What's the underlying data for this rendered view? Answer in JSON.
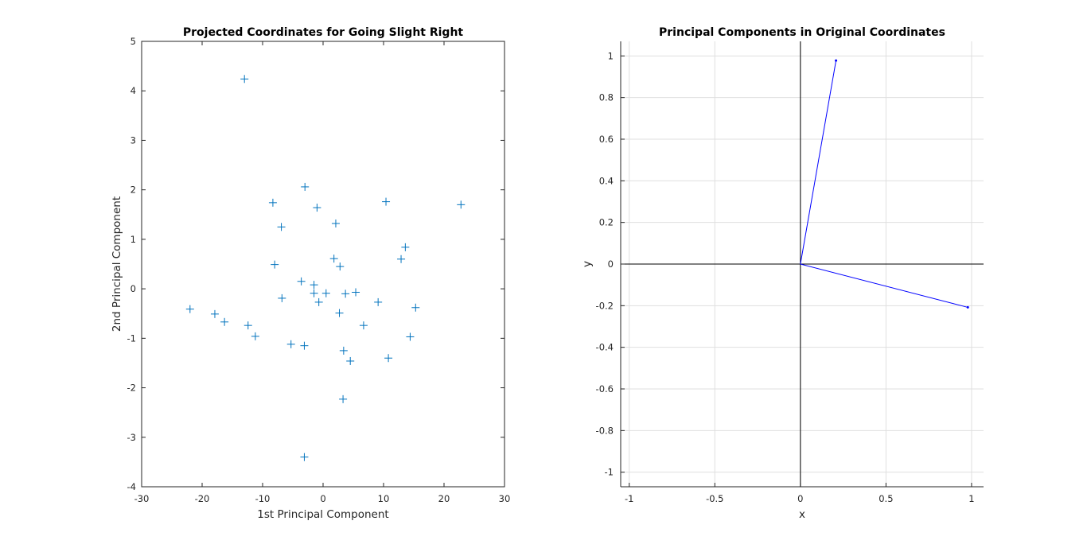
{
  "chart_data": [
    {
      "type": "scatter",
      "title": "Projected Coordinates for Going Slight Right",
      "xlabel": "1st Principal Component",
      "ylabel": "2nd Principal Component",
      "xlim": [
        -30,
        30
      ],
      "ylim": [
        -4,
        5
      ],
      "xticks": [
        -30,
        -20,
        -10,
        0,
        10,
        20,
        30
      ],
      "yticks": [
        -4,
        -3,
        -2,
        -1,
        0,
        1,
        2,
        3,
        4,
        5
      ],
      "grid": false,
      "marker": "+",
      "color": "#0072BD",
      "series": [
        {
          "x": [
            -13,
            -3,
            -8.3,
            -1,
            2.1,
            10.4,
            22.8,
            -6.9,
            13.6,
            1.8,
            12.9,
            -8,
            2.8,
            -3.6,
            -1.5,
            -1.5,
            0.5,
            3.7,
            5.4,
            -0.7,
            -6.8,
            9.1,
            15.3,
            -22,
            -17.9,
            -16.3,
            -12.4,
            2.7,
            -11.2,
            6.7,
            14.4,
            -5.3,
            -3.1,
            3.4,
            10.8,
            4.5,
            3.3,
            -3.1
          ],
          "y": [
            4.24,
            2.06,
            1.74,
            1.64,
            1.32,
            1.76,
            1.7,
            1.25,
            0.84,
            0.61,
            0.6,
            0.49,
            0.45,
            0.15,
            0.08,
            -0.09,
            -0.09,
            -0.1,
            -0.07,
            -0.27,
            -0.19,
            -0.27,
            -0.38,
            -0.41,
            -0.51,
            -0.67,
            -0.74,
            -0.49,
            -0.96,
            -0.74,
            -0.97,
            -1.12,
            -1.15,
            -1.25,
            -1.4,
            -1.46,
            -2.23,
            -3.4
          ]
        }
      ]
    },
    {
      "type": "line",
      "title": "Principal Components in Original Coordinates",
      "xlabel": "x",
      "ylabel": "y",
      "xlim": [
        -1.05,
        1.07
      ],
      "ylim": [
        -1.07,
        1.07
      ],
      "xticks": [
        -1,
        -0.5,
        0,
        0.5,
        1
      ],
      "yticks": [
        -1,
        -0.8,
        -0.6,
        -0.4,
        -0.2,
        0,
        0.2,
        0.4,
        0.6,
        0.8,
        1
      ],
      "xtick_labels": [
        "-1",
        "-0.5",
        "0",
        "0.5",
        "1"
      ],
      "ytick_labels": [
        "-1",
        "-0.8",
        "-0.6",
        "-0.4",
        "-0.2",
        "0",
        "0.2",
        "0.4",
        "0.6",
        "0.8",
        "1"
      ],
      "grid": true,
      "color": "#0000FF",
      "series": [
        {
          "x": [
            0,
            0.208
          ],
          "y": [
            0,
            0.978
          ]
        },
        {
          "x": [
            0,
            0.978
          ],
          "y": [
            0,
            -0.208
          ]
        }
      ]
    }
  ]
}
